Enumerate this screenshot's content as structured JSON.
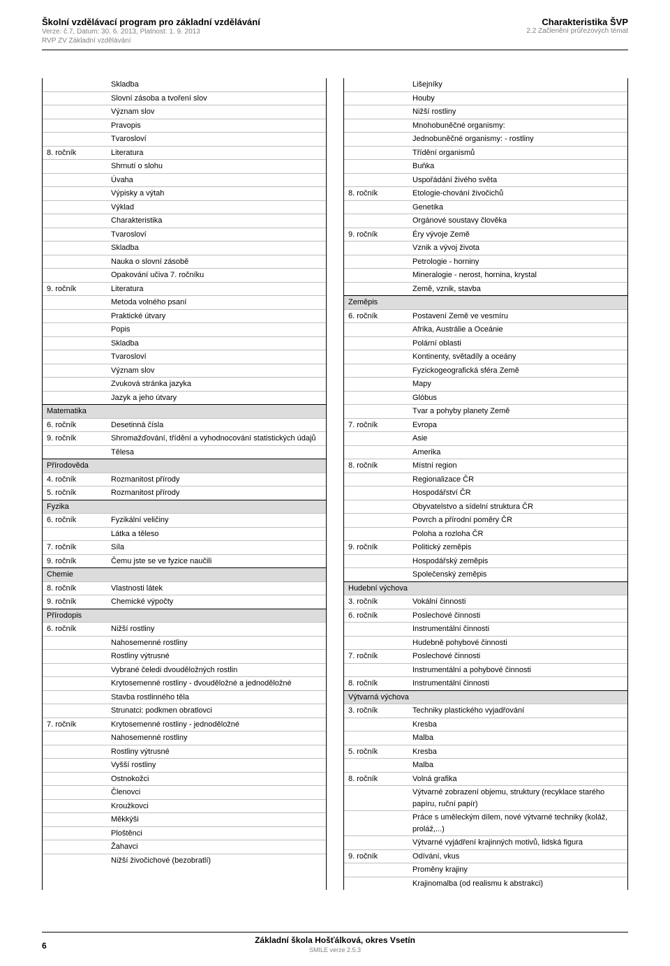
{
  "header": {
    "title": "Školní vzdělávací program pro základní vzdělávání",
    "sub1": "Verze: č.7, Datum: 30. 6. 2013, Platnost: 1. 9. 2013",
    "sub2": "RVP ZV Základní vzdělávání",
    "right_title": "Charakteristika ŠVP",
    "right_sub": "2.2 Začlenění průřezových témat"
  },
  "footer": {
    "school": "Základní škola Hošťálková, okres Vsetín",
    "smile": "SMILE verze 2.5.3",
    "page": "6"
  },
  "left": [
    {
      "k": "",
      "v": "Skladba",
      "first": true
    },
    {
      "k": "",
      "v": "Slovní zásoba a tvoření slov"
    },
    {
      "k": "",
      "v": "Význam slov"
    },
    {
      "k": "",
      "v": "Pravopis"
    },
    {
      "k": "",
      "v": "Tvarosloví"
    },
    {
      "k": "8. ročník",
      "v": "Literatura"
    },
    {
      "k": "",
      "v": "Shrnutí o slohu"
    },
    {
      "k": "",
      "v": "Úvaha"
    },
    {
      "k": "",
      "v": "Výpisky a výtah"
    },
    {
      "k": "",
      "v": "Výklad"
    },
    {
      "k": "",
      "v": "Charakteristika"
    },
    {
      "k": "",
      "v": "Tvarosloví"
    },
    {
      "k": "",
      "v": "Skladba"
    },
    {
      "k": "",
      "v": "Nauka o slovní zásobě"
    },
    {
      "k": "",
      "v": "Opakování učiva 7. ročníku"
    },
    {
      "k": "9. ročník",
      "v": "Literatura"
    },
    {
      "k": "",
      "v": "Metoda volného psaní"
    },
    {
      "k": "",
      "v": "Praktické útvary"
    },
    {
      "k": "",
      "v": "Popis"
    },
    {
      "k": "",
      "v": "Skladba"
    },
    {
      "k": "",
      "v": "Tvarosloví"
    },
    {
      "k": "",
      "v": "Význam slov"
    },
    {
      "k": "",
      "v": "Zvuková stránka jazyka"
    },
    {
      "k": "",
      "v": "Jazyk a jeho útvary"
    },
    {
      "sect": "Matematika"
    },
    {
      "k": "6. ročník",
      "v": "Desetinná čísla"
    },
    {
      "k": "9. ročník",
      "v": "Shromažďování, třídění a vyhodnocování statistických údajů"
    },
    {
      "k": "",
      "v": "Tělesa"
    },
    {
      "sect": "Přírodověda"
    },
    {
      "k": "4. ročník",
      "v": "Rozmanitost přírody"
    },
    {
      "k": "5. ročník",
      "v": "Rozmanitost přírody"
    },
    {
      "sect": "Fyzika"
    },
    {
      "k": "6. ročník",
      "v": "Fyzikální veličiny"
    },
    {
      "k": "",
      "v": "Látka a těleso"
    },
    {
      "k": "7. ročník",
      "v": "Síla"
    },
    {
      "k": "9. ročník",
      "v": "Čemu jste se ve fyzice naučili"
    },
    {
      "sect": "Chemie"
    },
    {
      "k": "8. ročník",
      "v": "Vlastnosti látek"
    },
    {
      "k": "9. ročník",
      "v": "Chemické výpočty"
    },
    {
      "sect": "Přírodopis"
    },
    {
      "k": "6. ročník",
      "v": "Nižší rostliny"
    },
    {
      "k": "",
      "v": "Nahosemenné rostliny"
    },
    {
      "k": "",
      "v": "Rostliny výtrusné"
    },
    {
      "k": "",
      "v": "Vybrané čeledi dvouděložných rostlin"
    },
    {
      "k": "",
      "v": "Krytosemenné rostliny - dvouděložné a jednoděložné"
    },
    {
      "k": "",
      "v": "Stavba rostlinného těla"
    },
    {
      "k": "",
      "v": "Strunatci: podkmen obratlovci"
    },
    {
      "k": "7. ročník",
      "v": "Krytosemenné rostliny - jednoděložné"
    },
    {
      "k": "",
      "v": "Nahosemenné rostliny"
    },
    {
      "k": "",
      "v": "Rostliny výtrusné"
    },
    {
      "k": "",
      "v": "Vyšší rostliny"
    },
    {
      "k": "",
      "v": "Ostnokožci"
    },
    {
      "k": "",
      "v": "Členovci"
    },
    {
      "k": "",
      "v": "Kroužkovci"
    },
    {
      "k": "",
      "v": "Měkkýši"
    },
    {
      "k": "",
      "v": "Ploštěnci"
    },
    {
      "k": "",
      "v": "Žahavci"
    },
    {
      "k": "",
      "v": "Nižší živočichové (bezobratlí)"
    }
  ],
  "right": [
    {
      "k": "",
      "v": "Lišejníky",
      "first": true
    },
    {
      "k": "",
      "v": "Houby"
    },
    {
      "k": "",
      "v": "Nižší rostliny"
    },
    {
      "k": "",
      "v": "Mnohobuněčné organismy:"
    },
    {
      "k": "",
      "v": "Jednobuněčné organismy: - rostliny"
    },
    {
      "k": "",
      "v": "Třídění organismů"
    },
    {
      "k": "",
      "v": "Buňka"
    },
    {
      "k": "",
      "v": "Uspořádání živého světa"
    },
    {
      "k": "8. ročník",
      "v": "Etologie-chování živočichů"
    },
    {
      "k": "",
      "v": "Genetika"
    },
    {
      "k": "",
      "v": "Orgánové soustavy člověka"
    },
    {
      "k": "9. ročník",
      "v": "Éry vývoje Země"
    },
    {
      "k": "",
      "v": "Vznik a vývoj života"
    },
    {
      "k": "",
      "v": "Petrologie - horniny"
    },
    {
      "k": "",
      "v": "Mineralogie - nerost, hornina, krystal"
    },
    {
      "k": "",
      "v": "Země, vznik, stavba"
    },
    {
      "sect": "Zeměpis"
    },
    {
      "k": "6. ročník",
      "v": "Postavení Země ve  vesmíru"
    },
    {
      "k": "",
      "v": "Afrika, Austrálie a Oceánie"
    },
    {
      "k": "",
      "v": "Polární oblasti"
    },
    {
      "k": "",
      "v": "Kontinenty, světadíly a oceány"
    },
    {
      "k": "",
      "v": "Fyzickogeografická sféra Země"
    },
    {
      "k": "",
      "v": "Mapy"
    },
    {
      "k": "",
      "v": "Glóbus"
    },
    {
      "k": "",
      "v": "Tvar a pohyby planety Země"
    },
    {
      "k": "7. ročník",
      "v": "Evropa"
    },
    {
      "k": "",
      "v": "Asie"
    },
    {
      "k": "",
      "v": "Amerika"
    },
    {
      "k": "8. ročník",
      "v": "Místní region"
    },
    {
      "k": "",
      "v": "Regionalizace ČR"
    },
    {
      "k": "",
      "v": "Hospodářství ČR"
    },
    {
      "k": "",
      "v": "Obyvatelstvo a sídelní struktura ČR"
    },
    {
      "k": "",
      "v": "Povrch a přírodní poměry ČR"
    },
    {
      "k": "",
      "v": "Poloha a rozloha ČR"
    },
    {
      "k": "9. ročník",
      "v": "Politický zeměpis"
    },
    {
      "k": "",
      "v": "Hospodářský zeměpis"
    },
    {
      "k": "",
      "v": "Společenský zeměpis"
    },
    {
      "sect": "Hudební výchova"
    },
    {
      "k": "3. ročník",
      "v": "Vokální činnosti"
    },
    {
      "k": "6. ročník",
      "v": "Poslechové činnosti"
    },
    {
      "k": "",
      "v": "Instrumentální činnosti"
    },
    {
      "k": "",
      "v": "Hudebně pohybové činnosti"
    },
    {
      "k": "7. ročník",
      "v": "Poslechové činnosti"
    },
    {
      "k": "",
      "v": "Instrumentální a pohybové činnosti"
    },
    {
      "k": "8. ročník",
      "v": "Instrumentální činnosti"
    },
    {
      "sect": "Výtvarná výchova"
    },
    {
      "k": "3. ročník",
      "v": "Techniky plastického vyjadřování"
    },
    {
      "k": "",
      "v": "Kresba"
    },
    {
      "k": "",
      "v": "Malba"
    },
    {
      "k": "5. ročník",
      "v": "Kresba"
    },
    {
      "k": "",
      "v": "Malba"
    },
    {
      "k": "8. ročník",
      "v": "Volná grafika"
    },
    {
      "k": "",
      "v": "Výtvarné zobrazení objemu, struktury (recyklace starého papíru, ruční papír)"
    },
    {
      "k": "",
      "v": "Práce s uměleckým dílem, nové výtvarné techniky (koláž, proláž,...)"
    },
    {
      "k": "",
      "v": "Výtvarné vyjádření krajinných motivů, lidská figura"
    },
    {
      "k": "9. ročník",
      "v": "Odívání, vkus"
    },
    {
      "k": "",
      "v": "Proměny krajiny"
    },
    {
      "k": "",
      "v": "Krajinomalba (od realismu k abstrakci)"
    }
  ]
}
